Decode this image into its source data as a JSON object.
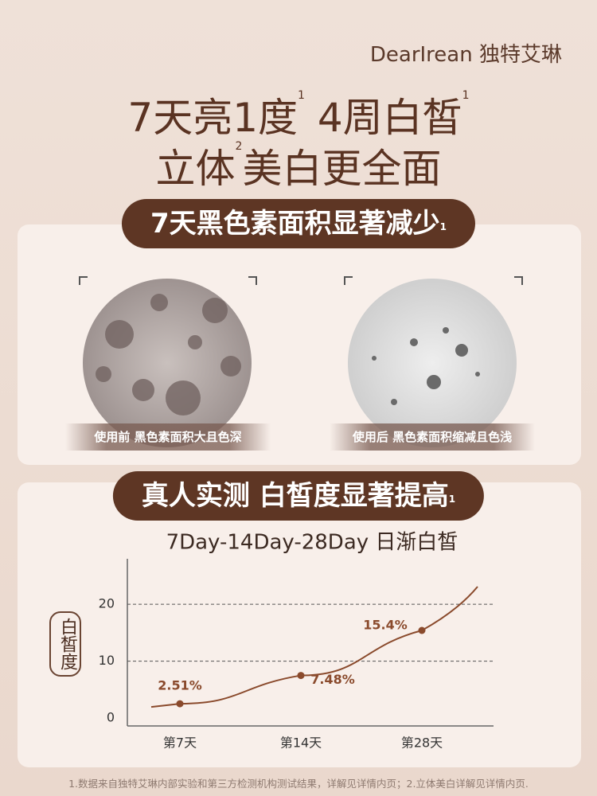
{
  "brand": {
    "name": "DearIrean",
    "cn": "独特艾琳"
  },
  "headline": {
    "line1a": "7天亮1度",
    "sup1": "1",
    "line1b": "4周白皙",
    "sup2": "1",
    "line2a": "立体",
    "sup3": "2",
    "line2b": "美白更全面"
  },
  "section1": {
    "title": "7天黑色素面积显著减少",
    "sup": "1",
    "before_caption": "使用前 黑色素面积大且色深",
    "after_caption": "使用后 黑色素面积缩减且色浅"
  },
  "section2": {
    "title": "真人实测 白皙度显著提高",
    "sup": "1"
  },
  "chart_data": {
    "type": "line",
    "subtitle": "7Day-14Day-28Day 日渐白皙",
    "y_label": "白皙度",
    "categories": [
      "第7天",
      "第14天",
      "第28天"
    ],
    "series": [
      {
        "name": "白皙度",
        "color": "#8a4a2c",
        "values": [
          2.51,
          7.48,
          15.4
        ],
        "value_labels": [
          "2.51%",
          "7.48%",
          "15.4%"
        ]
      }
    ],
    "ylim": [
      0,
      28
    ],
    "yticks": [
      0,
      10,
      20
    ],
    "grid": true
  },
  "footnote": "1.数据来自独特艾琳内部实验和第三方检测机构测试结果，详解见详情内页；2.立体美白详解见详情内页."
}
